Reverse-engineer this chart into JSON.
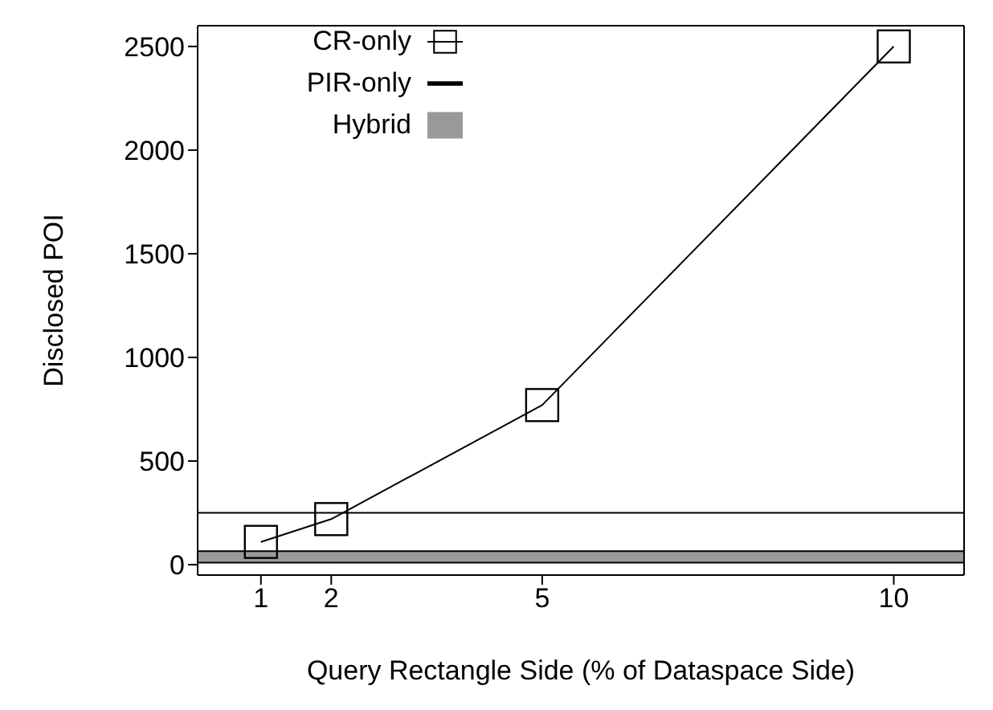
{
  "chart_data": {
    "type": "line",
    "xlabel": "Query Rectangle Side (% of Dataspace Side)",
    "ylabel": "Disclosed POI",
    "x": [
      1,
      2,
      5,
      10
    ],
    "series": [
      {
        "name": "CR-only",
        "color": "#000000",
        "values": [
          110,
          220,
          770,
          2500
        ],
        "marker": "square"
      }
    ],
    "ref_lines": [
      {
        "axis": "y",
        "value": 250,
        "label": "PIR-only",
        "color": "#000000"
      }
    ],
    "bands": [
      {
        "axis": "y",
        "from": 10,
        "to": 65,
        "label": "Hybrid",
        "color": "#999999"
      }
    ],
    "xlim": [
      0.1,
      11
    ],
    "xticks": [
      1,
      2,
      5,
      10
    ],
    "ylim": [
      -50,
      2600
    ],
    "yticks": [
      0,
      500,
      1000,
      1500,
      2000,
      2500
    ],
    "grid": false,
    "legend": "top left",
    "line_style": "solid"
  }
}
